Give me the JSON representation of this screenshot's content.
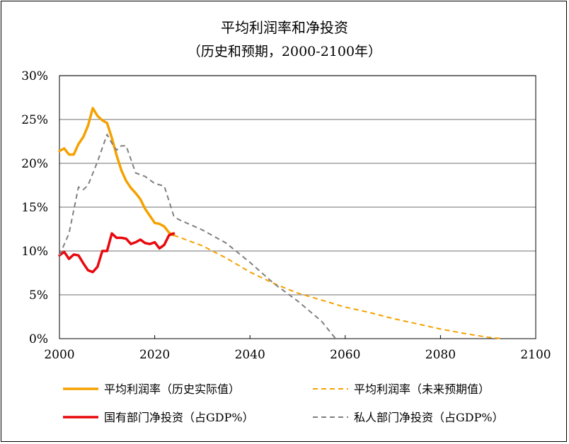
{
  "chart_data": {
    "type": "line",
    "title": "平均利润率和净投资",
    "subtitle": "（历史和预期，2000-2100年）",
    "xlabel": "",
    "ylabel": "",
    "xlim": [
      2000,
      2100
    ],
    "ylim": [
      0,
      30
    ],
    "x_ticks": [
      "2000",
      "2020",
      "2040",
      "2060",
      "2080",
      "2100"
    ],
    "y_ticks": [
      "0%",
      "5%",
      "10%",
      "15%",
      "20%",
      "25%",
      "30%"
    ],
    "grid": "horizontal",
    "legend_position": "bottom",
    "series": [
      {
        "name": "平均利润率（历史实际值）",
        "color": "#F5A100",
        "style": "solid",
        "x": [
          2000,
          2001,
          2002,
          2003,
          2004,
          2005,
          2006,
          2007,
          2008,
          2009,
          2010,
          2011,
          2012,
          2013,
          2014,
          2015,
          2016,
          2017,
          2018,
          2019,
          2020,
          2021,
          2022,
          2023,
          2024
        ],
        "values": [
          21.4,
          21.7,
          21.0,
          21.0,
          22.2,
          23.0,
          24.3,
          26.3,
          25.4,
          24.9,
          24.6,
          22.9,
          20.9,
          19.2,
          18.0,
          17.2,
          16.6,
          15.9,
          14.8,
          14.0,
          13.2,
          13.1,
          12.8,
          12.1,
          11.8
        ]
      },
      {
        "name": "平均利润率（未来预期值）",
        "color": "#F5A100",
        "style": "dashed",
        "x": [
          2024,
          2030,
          2035,
          2040,
          2045,
          2050,
          2055,
          2060,
          2065,
          2070,
          2075,
          2080,
          2085,
          2090,
          2093
        ],
        "values": [
          11.8,
          10.6,
          9.2,
          7.6,
          6.3,
          5.2,
          4.4,
          3.6,
          3.0,
          2.3,
          1.7,
          1.1,
          0.6,
          0.15,
          0
        ]
      },
      {
        "name": "国有部门净投资（占GDP%）",
        "color": "#E8080E",
        "style": "solid",
        "x": [
          2000,
          2001,
          2002,
          2003,
          2004,
          2005,
          2006,
          2007,
          2008,
          2009,
          2010,
          2011,
          2012,
          2013,
          2014,
          2015,
          2016,
          2017,
          2018,
          2019,
          2020,
          2021,
          2022,
          2023,
          2024
        ],
        "values": [
          9.5,
          9.9,
          9.1,
          9.6,
          9.5,
          8.6,
          7.8,
          7.6,
          8.2,
          10.0,
          10.0,
          12.0,
          11.5,
          11.5,
          11.4,
          10.8,
          11.0,
          11.3,
          10.9,
          10.8,
          11.0,
          10.3,
          10.7,
          11.8,
          12.0
        ]
      },
      {
        "name": "私人部门净投资（占GDP%）",
        "color": "#808080",
        "style": "dashed",
        "x": [
          2000,
          2002,
          2004,
          2005,
          2006,
          2008,
          2010,
          2011,
          2012,
          2013,
          2014,
          2016,
          2018,
          2020,
          2022,
          2024,
          2025,
          2030,
          2035,
          2040,
          2045,
          2050,
          2055,
          2058
        ],
        "values": [
          9.5,
          12.0,
          17.3,
          17.0,
          17.5,
          20.2,
          23.3,
          22.3,
          21.5,
          22.0,
          22.0,
          18.9,
          18.5,
          17.7,
          17.4,
          14.0,
          13.6,
          12.4,
          10.9,
          8.7,
          6.3,
          4.3,
          2.0,
          0
        ]
      }
    ]
  },
  "legend": {
    "items": [
      {
        "label": "平均利润率（历史实际值）"
      },
      {
        "label": "平均利润率（未来预期值）"
      },
      {
        "label": "国有部门净投资（占GDP%）"
      },
      {
        "label": "私人部门净投资（占GDP%）"
      }
    ]
  }
}
